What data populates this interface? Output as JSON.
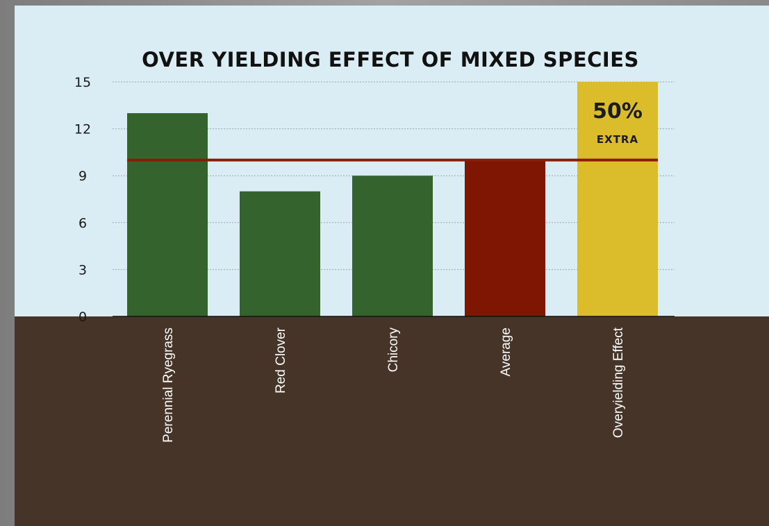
{
  "chart_data": {
    "type": "bar",
    "title": "OVER YIELDING EFFECT OF MIXED SPECIES",
    "xlabel": "",
    "ylabel": "",
    "categories": [
      "Perennial Ryegrass",
      "Red Clover",
      "Chicory",
      "Average",
      "Overyielding Effect"
    ],
    "values": [
      13,
      8,
      9,
      10,
      15
    ],
    "bar_colors": [
      "#35632d",
      "#35632d",
      "#35632d",
      "#7f1503",
      "#dbbd2c"
    ],
    "ylim": [
      0,
      15
    ],
    "yticks": [
      0,
      3,
      6,
      9,
      12,
      15
    ],
    "grid": true,
    "reference_line": {
      "value": 10,
      "color": "#8b1a0a"
    },
    "annotation": {
      "category": "Overyielding Effect",
      "main": "50%",
      "sub": "EXTRA"
    }
  },
  "colors": {
    "sky": "#dbedf4",
    "soil": "#473428",
    "gridline": "#9aa3a6"
  }
}
